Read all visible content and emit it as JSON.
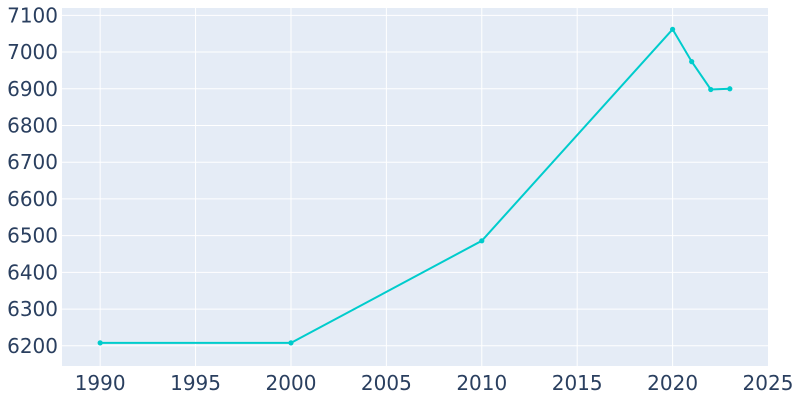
{
  "chart_data": {
    "type": "line",
    "title": "",
    "xlabel": "",
    "ylabel": "",
    "xlim": [
      1988,
      2025
    ],
    "ylim": [
      6145,
      7120
    ],
    "x_ticks": [
      1990,
      1995,
      2000,
      2005,
      2010,
      2015,
      2020,
      2025
    ],
    "y_ticks": [
      6200,
      6300,
      6400,
      6500,
      6600,
      6700,
      6800,
      6900,
      7000,
      7100
    ],
    "grid": true,
    "legend": "none",
    "series": [
      {
        "x": [
          1990,
          2000,
          2010,
          2020,
          2021,
          2022,
          2023
        ],
        "values": [
          6208,
          6208,
          6486,
          7062,
          6974,
          6898,
          6900
        ]
      }
    ],
    "colors": {
      "background": "#e5ecf6",
      "grid": "#ffffff",
      "series": "#00cccc",
      "tick_text": "#2a3f5f"
    }
  }
}
